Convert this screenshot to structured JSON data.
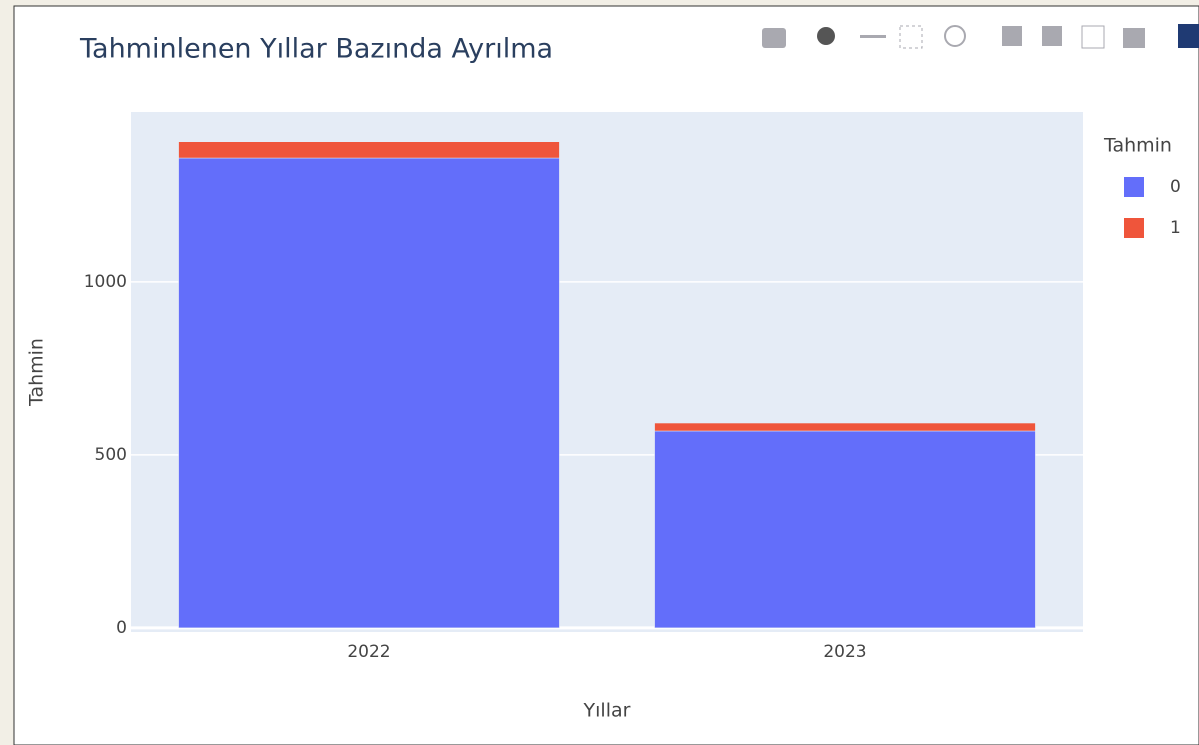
{
  "chart_data": {
    "type": "bar",
    "barmode": "stack",
    "title": "Tahminlenen Yıllar Bazında Ayrılma",
    "x_label": "Yıllar",
    "y_label": "Tahmin",
    "legend_title": "Tahmin",
    "categories": [
      "2022",
      "2023"
    ],
    "series": [
      {
        "name": "0",
        "color": "#636efa",
        "values": [
          1358,
          569
        ]
      },
      {
        "name": "1",
        "color": "#ef553b",
        "values": [
          47,
          23
        ]
      }
    ],
    "ylim": [
      -12,
      1491
    ],
    "yticks": [
      0,
      500,
      1000
    ],
    "grid": true,
    "legend": "right"
  }
}
